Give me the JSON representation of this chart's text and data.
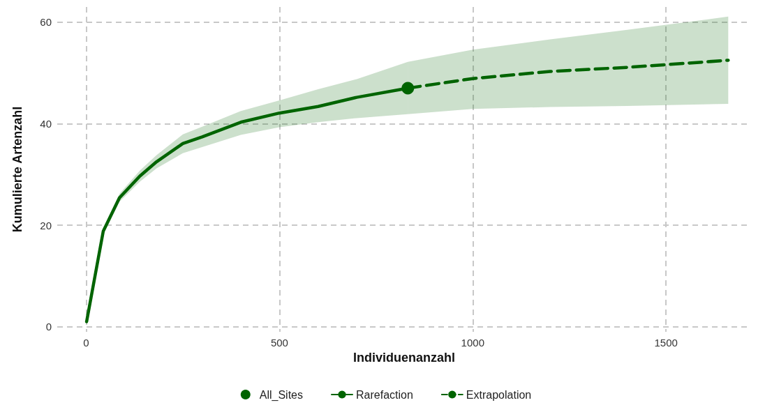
{
  "chart_data": {
    "type": "line",
    "xlabel": "Individuenanzahl",
    "ylabel": "Kumulierte Artenzahl",
    "xlim": [
      -75,
      1720
    ],
    "xticks": [
      0,
      500,
      1000,
      1500
    ],
    "ylim": [
      -1,
      63
    ],
    "yticks": [
      0,
      20,
      40,
      60
    ],
    "grid": true,
    "legend": "bottom",
    "marker": "none",
    "series": [
      {
        "name": "All_Sites",
        "type": "scatter",
        "marker": "circle",
        "color": "#006400",
        "x": [
          832
        ],
        "values": [
          47.0
        ]
      },
      {
        "name": "Rarefaction",
        "line_style": "solid",
        "color": "#006400",
        "x": [
          1,
          44,
          86,
          139,
          182,
          250,
          300,
          400,
          500,
          600,
          700,
          832
        ],
        "values": [
          1,
          18.8,
          25.4,
          29.7,
          32.5,
          36.1,
          37.4,
          40.3,
          42.1,
          43.4,
          45.2,
          47.0
        ],
        "lower": [
          1,
          18.3,
          24.6,
          28.6,
          31.2,
          34.2,
          35.4,
          37.8,
          39.3,
          40.3,
          41.1,
          41.9
        ],
        "upper": [
          1,
          19.3,
          26.2,
          30.8,
          33.8,
          37.9,
          39.4,
          42.5,
          44.6,
          46.8,
          48.8,
          52.2
        ]
      },
      {
        "name": "Extrapolation",
        "line_style": "dashed",
        "color": "#006400",
        "x": [
          832,
          1000,
          1200,
          1400,
          1661
        ],
        "values": [
          47.0,
          48.9,
          50.3,
          51.1,
          52.5
        ],
        "lower": [
          41.9,
          42.9,
          43.3,
          43.5,
          43.9
        ],
        "upper": [
          52.2,
          54.6,
          56.6,
          58.5,
          61.1
        ]
      }
    ]
  }
}
